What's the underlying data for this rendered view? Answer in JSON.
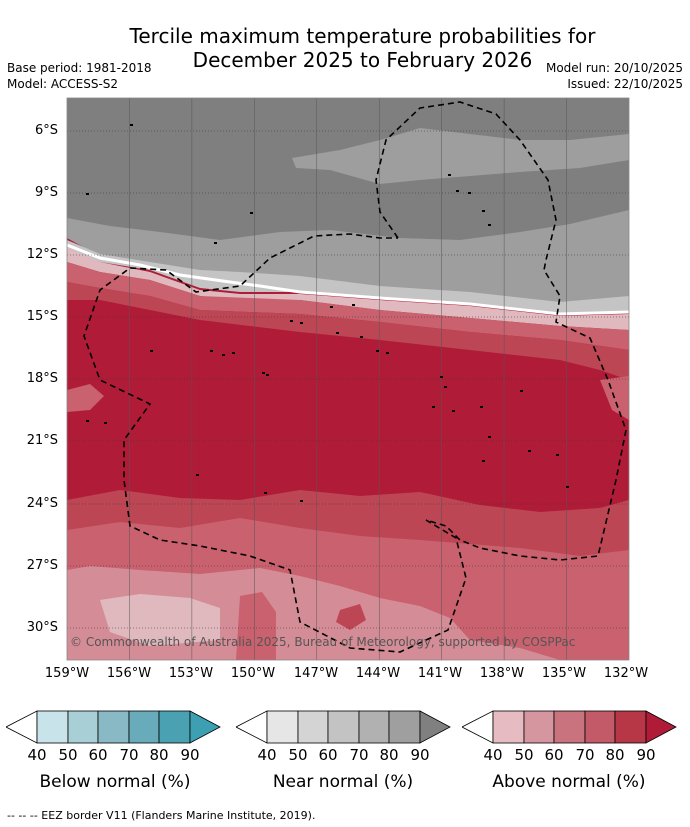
{
  "title": {
    "line1": "Tercile maximum temperature probabilities for",
    "line2": "December 2025 to February 2026"
  },
  "meta": {
    "base_period": "Base period: 1981-2018",
    "model": "Model: ACCESS-S2",
    "model_run": "Model run: 20/10/2025",
    "issued": "Issued: 22/10/2025"
  },
  "map": {
    "lat_labels": [
      "6°S",
      "9°S",
      "12°S",
      "15°S",
      "18°S",
      "21°S",
      "24°S",
      "27°S",
      "30°S"
    ],
    "lon_labels": [
      "159°W",
      "156°W",
      "153°W",
      "150°W",
      "147°W",
      "144°W",
      "141°W",
      "138°W",
      "135°W",
      "132°W"
    ],
    "copyright": "© Commonwealth of Australia 2025, Bureau of Meteorology, supported by COSPPac",
    "colors": {
      "near_60_70": "#7f7f7f",
      "near_50_60": "#9e9e9e",
      "near_40_50": "#c4c4c4",
      "above_40_50": "#e0b9be",
      "above_50_60": "#d48d97",
      "above_60_70": "#c9616f",
      "above_70_80": "#bd4654",
      "above_80_90": "#b01c38",
      "eez_border": "#000000"
    }
  },
  "colorbars": [
    {
      "title": "Below normal (%)",
      "ticks": [
        "40",
        "50",
        "60",
        "70",
        "80",
        "90"
      ],
      "colors": [
        "#ffffff",
        "#c9e3ea",
        "#a9cfd6",
        "#88b9c4",
        "#68abbb",
        "#4aa1b2",
        "#3c9fb2"
      ]
    },
    {
      "title": "Near normal (%)",
      "ticks": [
        "40",
        "50",
        "60",
        "70",
        "80",
        "90"
      ],
      "colors": [
        "#ffffff",
        "#e6e6e6",
        "#d4d4d4",
        "#c3c3c3",
        "#b1b1b1",
        "#9f9f9f",
        "#808080"
      ]
    },
    {
      "title": "Above normal (%)",
      "ticks": [
        "40",
        "50",
        "60",
        "70",
        "80",
        "90"
      ],
      "colors": [
        "#ffffff",
        "#e6bcc2",
        "#d6969f",
        "#c8737d",
        "#c25a67",
        "#b83747",
        "#b01c38"
      ]
    }
  ],
  "footnote": "--  --  -- EEZ border V11 (Flanders Marine Institute, 2019)."
}
